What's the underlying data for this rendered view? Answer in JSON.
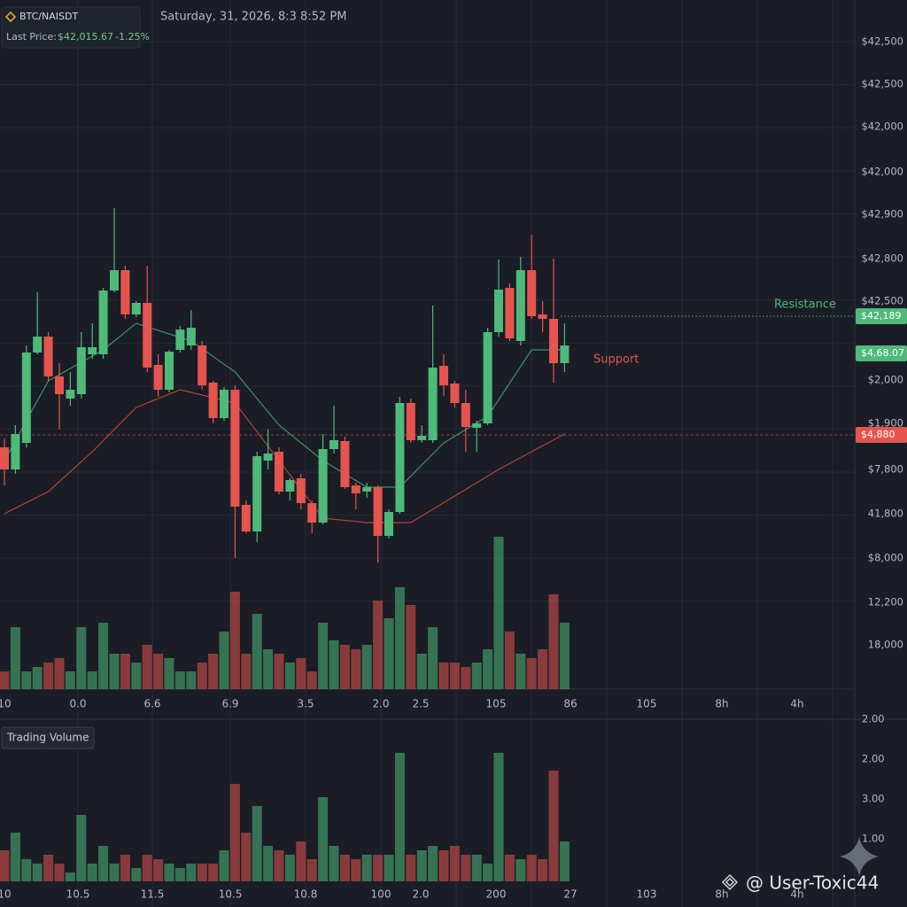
{
  "chart_data": {
    "type": "candlestick",
    "symbol": "BTC/NAISDT",
    "last_price_label": "Last Price:",
    "last_price": "$42,015.67",
    "change": "-1.25%",
    "datetime": "Saturday, 31, 2026, 8:3 8:52 PM",
    "up_color": "#4fb97a",
    "down_color": "#e5544f",
    "ylim": [
      220,
      1000
    ],
    "ohlc": [
      [
        495,
        505,
        452,
        470
      ],
      [
        470,
        520,
        465,
        510
      ],
      [
        500,
        610,
        495,
        602
      ],
      [
        602,
        670,
        600,
        620
      ],
      [
        620,
        625,
        570,
        575
      ],
      [
        575,
        590,
        515,
        555
      ],
      [
        550,
        580,
        542,
        560
      ],
      [
        555,
        625,
        550,
        608
      ],
      [
        600,
        635,
        595,
        608
      ],
      [
        600,
        675,
        595,
        672
      ],
      [
        672,
        765,
        670,
        695
      ],
      [
        695,
        700,
        640,
        645
      ],
      [
        645,
        660,
        642,
        658
      ],
      [
        658,
        700,
        580,
        585
      ],
      [
        588,
        600,
        552,
        560
      ],
      [
        560,
        605,
        557,
        603
      ],
      [
        605,
        632,
        602,
        628
      ],
      [
        610,
        650,
        605,
        630
      ],
      [
        610,
        615,
        560,
        565
      ],
      [
        568,
        570,
        522,
        528
      ],
      [
        528,
        563,
        525,
        560
      ],
      [
        560,
        565,
        370,
        428
      ],
      [
        430,
        435,
        398,
        400
      ],
      [
        400,
        490,
        388,
        485
      ],
      [
        480,
        515,
        470,
        488
      ],
      [
        490,
        495,
        442,
        445
      ],
      [
        445,
        460,
        435,
        458
      ],
      [
        460,
        465,
        425,
        432
      ],
      [
        432,
        435,
        398,
        410
      ],
      [
        410,
        510,
        408,
        493
      ],
      [
        493,
        542,
        488,
        503
      ],
      [
        502,
        507,
        448,
        450
      ],
      [
        452,
        455,
        425,
        443
      ],
      [
        445,
        455,
        438,
        450
      ],
      [
        450,
        452,
        365,
        395
      ],
      [
        395,
        425,
        392,
        422
      ],
      [
        422,
        552,
        420,
        545
      ],
      [
        545,
        550,
        500,
        503
      ],
      [
        503,
        520,
        500,
        508
      ],
      [
        503,
        655,
        500,
        585
      ],
      [
        587,
        600,
        553,
        565
      ],
      [
        567,
        570,
        540,
        545
      ],
      [
        545,
        560,
        490,
        518
      ],
      [
        517,
        525,
        490,
        522
      ],
      [
        522,
        630,
        520,
        625
      ],
      [
        625,
        707,
        620,
        673
      ],
      [
        675,
        680,
        615,
        618
      ],
      [
        615,
        710,
        610,
        695
      ],
      [
        695,
        735,
        640,
        643
      ],
      [
        645,
        660,
        625,
        640
      ],
      [
        640,
        708,
        568,
        590
      ],
      [
        590,
        635,
        580,
        610
      ]
    ],
    "moving_averages": [
      {
        "color": "#3f8f68",
        "x": [
          0,
          4,
          9,
          12,
          17,
          21,
          25,
          29,
          33,
          36,
          40,
          44,
          48,
          51
        ],
        "values": [
          480,
          570,
          605,
          635,
          615,
          580,
          520,
          480,
          450,
          450,
          500,
          530,
          605,
          605
        ]
      },
      {
        "color": "#b2423f",
        "x": [
          0,
          4,
          8,
          12,
          16,
          21,
          25,
          29,
          33,
          37,
          41,
          45,
          48,
          51
        ],
        "values": [
          420,
          445,
          490,
          540,
          560,
          545,
          480,
          415,
          410,
          410,
          440,
          470,
          490,
          510
        ]
      }
    ],
    "y_labels": [
      "$42,500",
      "$42,500",
      "$42,000",
      "$42,000",
      "$42,900",
      "$42,800",
      "$42,500",
      "$2,000",
      "$1,900",
      "$7,800",
      "41,800",
      "$8,000",
      "12,200",
      "18,000"
    ],
    "x_labels": [
      "10",
      "0.0",
      "6.6",
      "6.9",
      "3.5",
      "2.0",
      "2.5",
      "105",
      "86",
      "105",
      "8h",
      "4h"
    ],
    "price_tags": [
      {
        "label": "$42,189",
        "color": "#4fb97a"
      },
      {
        "label": "$4,68.07",
        "color": "#4fb97a"
      },
      {
        "label": "$4,880",
        "color": "#e5544f"
      }
    ],
    "annotations": [
      {
        "text": "Resistance",
        "color": "#4fb97a"
      },
      {
        "text": "Support",
        "color": "#e5544f"
      }
    ],
    "volume": {
      "ylim": [
        0,
        200
      ],
      "values": [
        20,
        70,
        20,
        25,
        30,
        35,
        20,
        70,
        20,
        75,
        40,
        40,
        30,
        50,
        40,
        35,
        20,
        20,
        30,
        40,
        65,
        110,
        40,
        85,
        45,
        40,
        30,
        35,
        20,
        75,
        55,
        50,
        45,
        50,
        100,
        80,
        115,
        95,
        40,
        70,
        30,
        30,
        25,
        30,
        45,
        172,
        65,
        40,
        35,
        45,
        107,
        75
      ]
    },
    "volume_panel": {
      "title": "Trading Volume",
      "ylim": [
        0,
        200
      ],
      "values": [
        35,
        55,
        25,
        20,
        30,
        20,
        10,
        75,
        20,
        40,
        20,
        30,
        15,
        30,
        25,
        20,
        15,
        20,
        20,
        20,
        35,
        110,
        55,
        85,
        40,
        35,
        30,
        45,
        25,
        95,
        40,
        30,
        25,
        30,
        30,
        30,
        145,
        30,
        35,
        40,
        35,
        40,
        30,
        30,
        20,
        145,
        30,
        25,
        30,
        25,
        125,
        45
      ],
      "y_labels": [
        "2.00",
        "2.00",
        "3.00",
        "1.00"
      ],
      "x_labels": [
        "10",
        "10.5",
        "11.5",
        "10.5",
        "10.8",
        "100",
        "2.0",
        "200",
        "27",
        "103",
        "8h",
        "4h"
      ]
    },
    "watermark": "@ User-Toxic44"
  }
}
